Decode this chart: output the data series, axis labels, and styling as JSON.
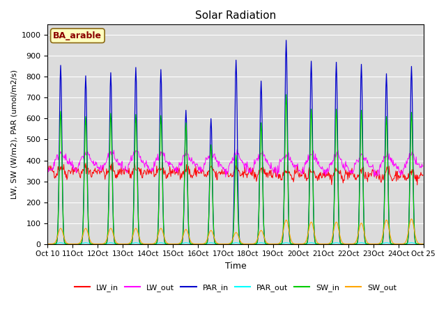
{
  "title": "Solar Radiation",
  "xlabel": "Time",
  "ylabel": "LW, SW (W/m2), PAR (umol/m2/s)",
  "annotation_text": "BA_arable",
  "annotation_color": "#8B0000",
  "annotation_bg": "#FFFFC0",
  "ylim": [
    0,
    1050
  ],
  "yticks": [
    0,
    100,
    200,
    300,
    400,
    500,
    600,
    700,
    800,
    900,
    1000
  ],
  "bg_color": "#DCDCDC",
  "legend_labels": [
    "LW_in",
    "LW_out",
    "PAR_in",
    "PAR_out",
    "SW_in",
    "SW_out"
  ],
  "line_colors": [
    "#FF0000",
    "#FF00FF",
    "#0000CC",
    "#00FFFF",
    "#00CC00",
    "#FFA500"
  ],
  "start_day": 10,
  "n_days": 15,
  "par_in_peaks": [
    855,
    805,
    820,
    845,
    835,
    640,
    600,
    880,
    780,
    975,
    875,
    870,
    860,
    815,
    850
  ],
  "sw_in_peaks": [
    635,
    610,
    625,
    620,
    615,
    580,
    475,
    425,
    580,
    715,
    645,
    645,
    640,
    610,
    630
  ],
  "sw_out_peaks": [
    75,
    75,
    75,
    75,
    75,
    70,
    65,
    55,
    65,
    115,
    105,
    105,
    100,
    115,
    120
  ]
}
